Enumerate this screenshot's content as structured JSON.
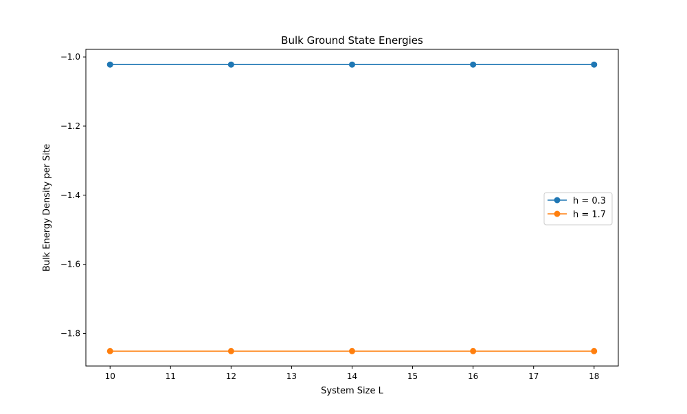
{
  "chart_data": {
    "type": "line",
    "title": "Bulk Ground State Energies",
    "xlabel": "System Size L",
    "ylabel": "Bulk Energy Density per Site",
    "x": [
      10,
      12,
      14,
      16,
      18
    ],
    "xlim": [
      9.6,
      18.4
    ],
    "ylim": [
      -1.894,
      -0.978
    ],
    "xticks": [
      10,
      11,
      12,
      13,
      14,
      15,
      16,
      17,
      18
    ],
    "xtick_labels": [
      "10",
      "11",
      "12",
      "13",
      "14",
      "15",
      "16",
      "17",
      "18"
    ],
    "yticks": [
      -1.0,
      -1.2,
      -1.4,
      -1.6,
      -1.8
    ],
    "ytick_labels": [
      "−1.0",
      "−1.2",
      "−1.4",
      "−1.6",
      "−1.8"
    ],
    "series": [
      {
        "name": "h = 0.3",
        "values": [
          -1.022,
          -1.022,
          -1.022,
          -1.022,
          -1.022
        ],
        "color": "#1f77b4",
        "marker": "circle"
      },
      {
        "name": "h = 1.7",
        "values": [
          -1.851,
          -1.851,
          -1.851,
          -1.851,
          -1.851
        ],
        "color": "#ff7f0e",
        "marker": "circle"
      }
    ],
    "grid": false,
    "legend_position": "center-right"
  }
}
